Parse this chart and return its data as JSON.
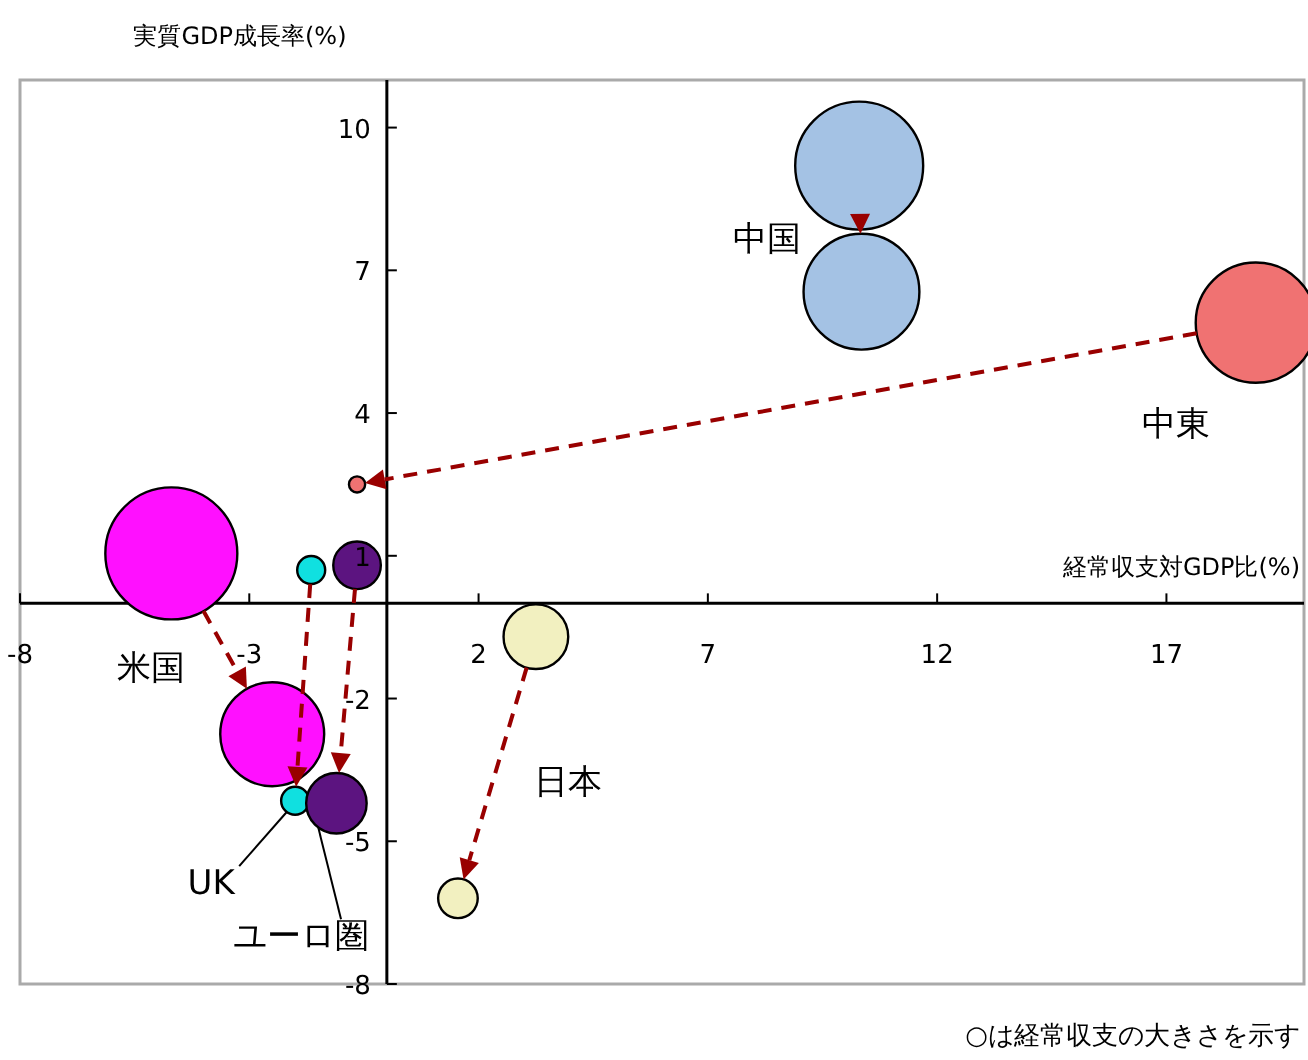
{
  "chart_data": {
    "type": "bubble",
    "xlabel": "経常収支対GDP比(%)",
    "ylabel": "実質GDP成長率(%)",
    "annotations": [
      "○は経常収支の大きさを示す"
    ],
    "xlim": [
      -8,
      20
    ],
    "ylim": [
      -8,
      11
    ],
    "xticks": [
      -8,
      -3,
      2,
      7,
      12,
      17
    ],
    "yticks": [
      -8,
      -5,
      -2,
      1,
      4,
      7,
      10
    ],
    "grid": false,
    "legend": false,
    "marker": "circle",
    "series": [
      {
        "name": "中国",
        "color": "#a4c2e4",
        "x": [
          10.3,
          10.35
        ],
        "values": [
          9.2,
          6.55
        ],
        "sizes": [
          0.94,
          0.77
        ]
      },
      {
        "name": "中東",
        "color": "#f07272",
        "x": [
          18.95,
          -0.65
        ],
        "values": [
          5.9,
          2.5
        ],
        "sizes": [
          0.83,
          0.015
        ]
      },
      {
        "name": "米国",
        "color": "#ff10ff",
        "x": [
          -4.7,
          -2.5
        ],
        "values": [
          1.05,
          -2.75
        ],
        "sizes": [
          1.0,
          0.62
        ]
      },
      {
        "name": "UK",
        "color": "#10e0e0",
        "x": [
          -1.65,
          -2.0
        ],
        "values": [
          0.7,
          -4.15
        ],
        "sizes": [
          0.045,
          0.045
        ]
      },
      {
        "name": "ユーロ圏",
        "color": "#5c1480",
        "x": [
          -0.65,
          -1.1
        ],
        "values": [
          0.8,
          -4.2
        ],
        "sizes": [
          0.13,
          0.21
        ]
      },
      {
        "name": "日本",
        "color": "#f2f0c0",
        "x": [
          3.25,
          1.55
        ],
        "values": [
          -0.7,
          -6.2
        ],
        "sizes": [
          0.24,
          0.09
        ]
      }
    ]
  }
}
